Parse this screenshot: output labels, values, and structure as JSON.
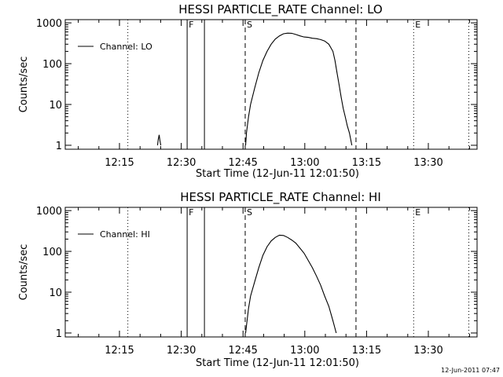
{
  "footer": {
    "timestamp": "12-Jun-2011 07:47"
  },
  "chart_data": [
    {
      "type": "line",
      "title": "HESSI PARTICLE_RATE Channel: LO",
      "xlabel": "Start Time (12-Jun-11 12:01:50)",
      "ylabel": "Counts/sec",
      "yscale": "log",
      "xlim_minutes": [
        0,
        100
      ],
      "ylim": [
        0.8,
        1200
      ],
      "x_ticks": [
        {
          "label": "12:15",
          "t": 13.17
        },
        {
          "label": "12:30",
          "t": 28.17
        },
        {
          "label": "12:45",
          "t": 43.17
        },
        {
          "label": "13:00",
          "t": 58.17
        },
        {
          "label": "13:15",
          "t": 73.17
        },
        {
          "label": "13:30",
          "t": 88.17
        }
      ],
      "y_ticks": [
        {
          "label": "1",
          "v": 1
        },
        {
          "label": "10",
          "v": 10
        },
        {
          "label": "100",
          "v": 100
        },
        {
          "label": "1000",
          "v": 1000
        }
      ],
      "legend": {
        "label": "Channel: LO",
        "position": "top-left"
      },
      "markers": [
        {
          "label": "F",
          "t": 29.6,
          "style": "solid"
        },
        {
          "label": "S",
          "t": 43.7,
          "style": "dashed"
        },
        {
          "label": "E",
          "t": 84.6,
          "style": "dotted"
        }
      ],
      "vlines": [
        {
          "t": 15.2,
          "style": "dotted"
        },
        {
          "t": 29.6,
          "style": "solid"
        },
        {
          "t": 33.8,
          "style": "solid"
        },
        {
          "t": 43.7,
          "style": "dashed"
        },
        {
          "t": 70.6,
          "style": "dashed"
        },
        {
          "t": 84.6,
          "style": "dotted"
        },
        {
          "t": 98.0,
          "style": "dotted"
        }
      ],
      "series": [
        {
          "segments": [
            [
              [
                22.4,
                1
              ],
              [
                22.6,
                1.4
              ],
              [
                22.8,
                1.8
              ],
              [
                23.0,
                1.3
              ],
              [
                23.2,
                1
              ]
            ],
            [
              [
                43.8,
                1
              ],
              [
                44.0,
                2
              ],
              [
                44.5,
                5
              ],
              [
                45,
                10
              ],
              [
                46,
                25
              ],
              [
                47,
                60
              ],
              [
                48,
                120
              ],
              [
                49,
                200
              ],
              [
                50,
                300
              ],
              [
                51,
                400
              ],
              [
                52,
                480
              ],
              [
                53,
                540
              ],
              [
                54,
                560
              ],
              [
                55,
                555
              ],
              [
                56,
                520
              ],
              [
                57,
                480
              ],
              [
                58,
                450
              ],
              [
                59,
                440
              ],
              [
                60,
                420
              ],
              [
                61,
                410
              ],
              [
                62,
                390
              ],
              [
                63,
                360
              ],
              [
                64,
                300
              ],
              [
                65,
                200
              ],
              [
                65.5,
                120
              ],
              [
                66,
                60
              ],
              [
                66.5,
                30
              ],
              [
                67,
                15
              ],
              [
                67.5,
                8
              ],
              [
                68,
                5
              ],
              [
                68.5,
                3
              ],
              [
                69,
                2
              ],
              [
                69.6,
                1
              ]
            ]
          ]
        }
      ]
    },
    {
      "type": "line",
      "title": "HESSI PARTICLE_RATE Channel: HI",
      "xlabel": "Start Time (12-Jun-11 12:01:50)",
      "ylabel": "Counts/sec",
      "yscale": "log",
      "xlim_minutes": [
        0,
        100
      ],
      "ylim": [
        0.8,
        1200
      ],
      "x_ticks": [
        {
          "label": "12:15",
          "t": 13.17
        },
        {
          "label": "12:30",
          "t": 28.17
        },
        {
          "label": "12:45",
          "t": 43.17
        },
        {
          "label": "13:00",
          "t": 58.17
        },
        {
          "label": "13:15",
          "t": 73.17
        },
        {
          "label": "13:30",
          "t": 88.17
        }
      ],
      "y_ticks": [
        {
          "label": "1",
          "v": 1
        },
        {
          "label": "10",
          "v": 10
        },
        {
          "label": "100",
          "v": 100
        },
        {
          "label": "1000",
          "v": 1000
        }
      ],
      "legend": {
        "label": "Channel: HI",
        "position": "top-left"
      },
      "markers": [
        {
          "label": "F",
          "t": 29.6,
          "style": "solid"
        },
        {
          "label": "S",
          "t": 43.7,
          "style": "dashed"
        },
        {
          "label": "E",
          "t": 84.6,
          "style": "dotted"
        }
      ],
      "vlines": [
        {
          "t": 15.2,
          "style": "dotted"
        },
        {
          "t": 29.6,
          "style": "solid"
        },
        {
          "t": 33.8,
          "style": "solid"
        },
        {
          "t": 43.7,
          "style": "dashed"
        },
        {
          "t": 70.6,
          "style": "dashed"
        },
        {
          "t": 84.6,
          "style": "dotted"
        },
        {
          "t": 98.0,
          "style": "dotted"
        }
      ],
      "series": [
        {
          "segments": [
            [
              [
                43.8,
                1
              ],
              [
                44.5,
                4
              ],
              [
                45,
                8
              ],
              [
                46,
                18
              ],
              [
                47,
                40
              ],
              [
                48,
                80
              ],
              [
                49,
                130
              ],
              [
                50,
                180
              ],
              [
                51,
                220
              ],
              [
                52,
                250
              ],
              [
                53,
                245
              ],
              [
                54,
                220
              ],
              [
                55,
                190
              ],
              [
                56,
                160
              ],
              [
                57,
                120
              ],
              [
                58,
                90
              ],
              [
                59,
                60
              ],
              [
                60,
                40
              ],
              [
                61,
                25
              ],
              [
                62,
                15
              ],
              [
                63,
                8
              ],
              [
                64,
                4.5
              ],
              [
                64.5,
                3
              ],
              [
                65,
                2
              ],
              [
                65.5,
                1.3
              ],
              [
                65.8,
                1
              ]
            ]
          ]
        }
      ]
    }
  ]
}
